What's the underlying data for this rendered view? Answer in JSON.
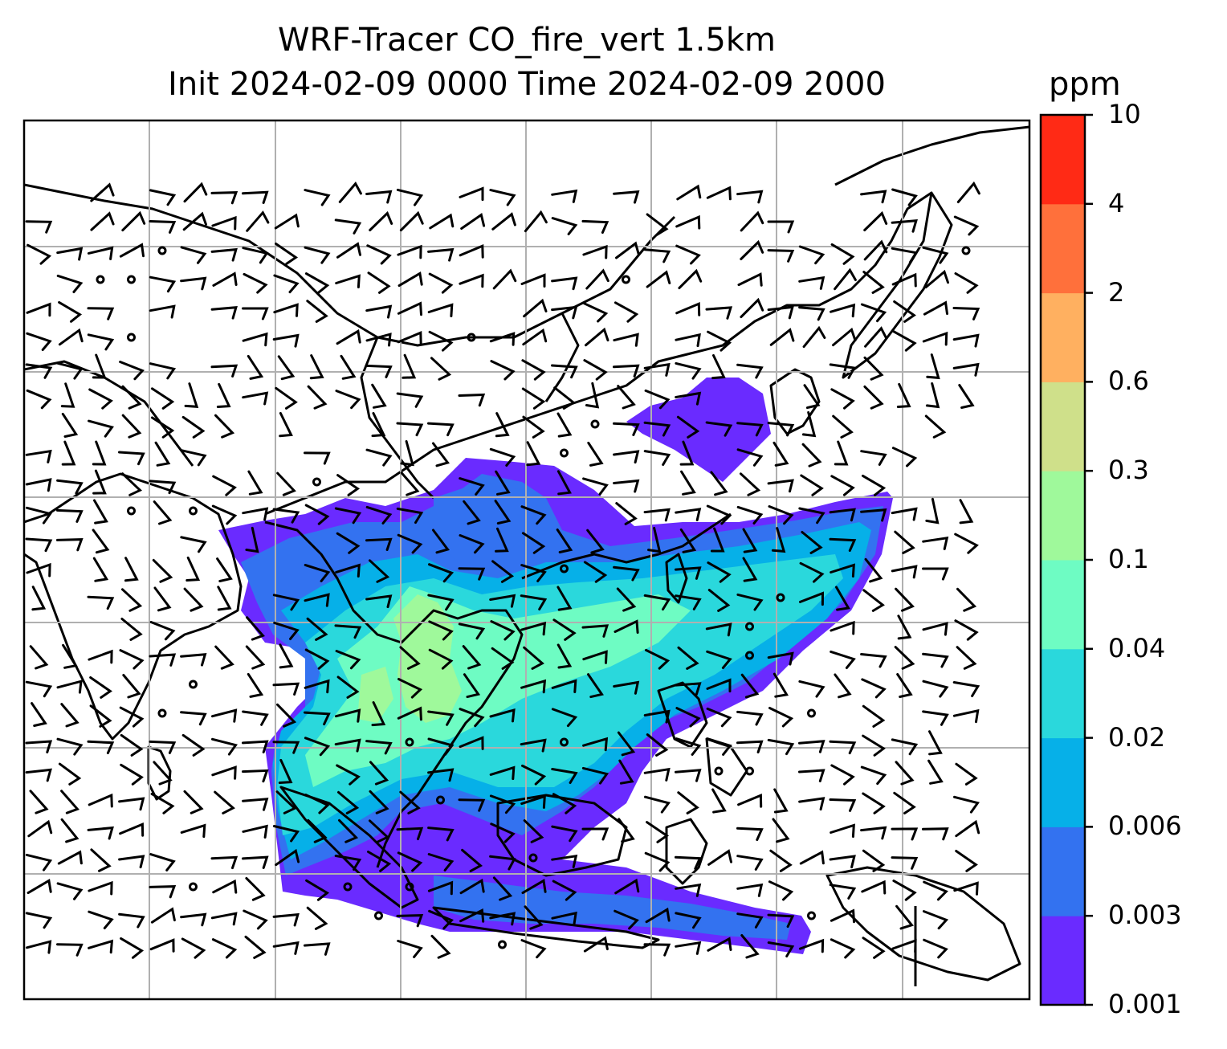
{
  "title": {
    "line1": "WRF-Tracer CO_fire_vert 1.5km",
    "line2": "Init 2024-02-09 0000 Time 2024-02-09 2000"
  },
  "colorbar": {
    "unit": "ppm",
    "levels": [
      "0.001",
      "0.003",
      "0.006",
      "0.02",
      "0.04",
      "0.1",
      "0.3",
      "0.6",
      "2",
      "4",
      "10"
    ],
    "colors": [
      "#6a2bff",
      "#3372f0",
      "#06b0e8",
      "#2ad8dc",
      "#6efcc3",
      "#9ff99b",
      "#cfe08a",
      "#ffb060",
      "#ff703b",
      "#ff2a15"
    ]
  },
  "map": {
    "shading_colors": {
      "lowest": "#6a2bff",
      "low": "#3372f0",
      "mid": "#06b0e8",
      "midhigh": "#2ad8dc",
      "high": "#6efcc3",
      "peak": "#9ff99b"
    },
    "gridline_color": "#b0b0b0",
    "coast_color": "#000000"
  }
}
